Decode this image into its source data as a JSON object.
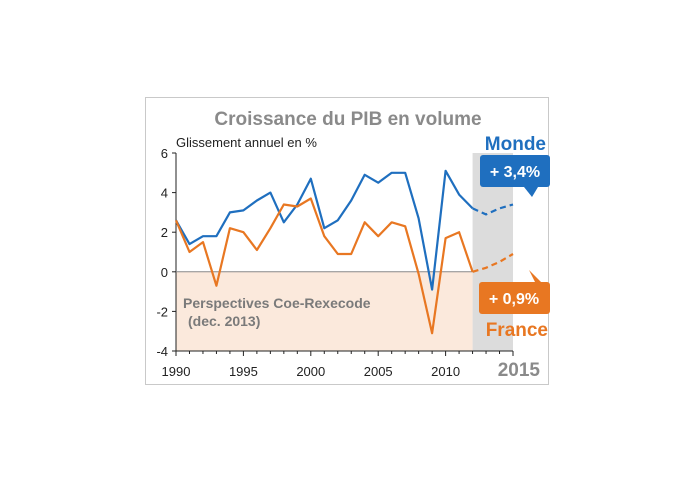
{
  "chart_data": {
    "type": "line",
    "title": "Croissance du PIB en volume",
    "ylabel": "Glissement annuel en %",
    "ylim": [
      -4,
      6
    ],
    "yticks": [
      "6",
      "4",
      "2",
      "0",
      "-2",
      "-4"
    ],
    "xlim": [
      1990,
      2015
    ],
    "xticks": [
      "1990",
      "1995",
      "2000",
      "2005",
      "2010"
    ],
    "x_end_label": "2015",
    "forecast_note": [
      "Perspectives Coe-Rexecode",
      "(dec. 2013)"
    ],
    "x": [
      1990,
      1991,
      1992,
      1993,
      1994,
      1995,
      1996,
      1997,
      1998,
      1999,
      2000,
      2001,
      2002,
      2003,
      2004,
      2005,
      2006,
      2007,
      2008,
      2009,
      2010,
      2011,
      2012,
      2013,
      2014,
      2015
    ],
    "series": [
      {
        "name": "Monde",
        "color": "#1f6fbf",
        "values": [
          2.6,
          1.4,
          1.8,
          1.8,
          3.0,
          3.1,
          3.6,
          4.0,
          2.5,
          3.4,
          4.7,
          2.2,
          2.6,
          3.6,
          4.9,
          4.5,
          5.0,
          5.0,
          2.7,
          -0.9,
          5.1,
          3.9,
          3.2,
          2.9,
          3.2,
          3.4
        ],
        "forecast_from": 2012,
        "callout": "+ 3,4%"
      },
      {
        "name": "France",
        "color": "#e87722",
        "values": [
          2.6,
          1.0,
          1.5,
          -0.7,
          2.2,
          2.0,
          1.1,
          2.2,
          3.4,
          3.3,
          3.7,
          1.8,
          0.9,
          0.9,
          2.5,
          1.8,
          2.5,
          2.3,
          -0.1,
          -3.1,
          1.7,
          2.0,
          0.0,
          0.2,
          0.5,
          0.9
        ],
        "forecast_from": 2012,
        "callout": "+ 0,9%"
      }
    ]
  }
}
